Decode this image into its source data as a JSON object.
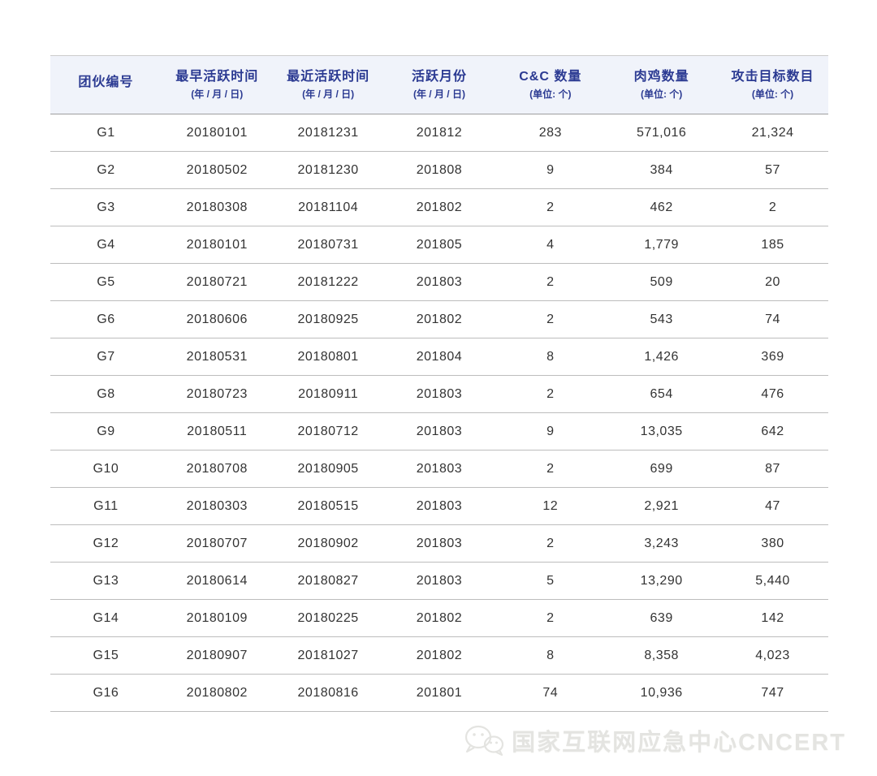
{
  "table": {
    "columns": [
      {
        "label": "团伙编号",
        "sub": ""
      },
      {
        "label": "最早活跃时间",
        "sub": "(年 / 月 / 日)"
      },
      {
        "label": "最近活跃时间",
        "sub": "(年 / 月 / 日)"
      },
      {
        "label": "活跃月份",
        "sub": "(年 / 月 / 日)"
      },
      {
        "label": "C&C 数量",
        "sub": "(单位: 个)"
      },
      {
        "label": "肉鸡数量",
        "sub": "(单位: 个)"
      },
      {
        "label": "攻击目标数目",
        "sub": "(单位: 个)"
      }
    ],
    "rows": [
      [
        "G1",
        "20180101",
        "20181231",
        "201812",
        "283",
        "571,016",
        "21,324"
      ],
      [
        "G2",
        "20180502",
        "20181230",
        "201808",
        "9",
        "384",
        "57"
      ],
      [
        "G3",
        "20180308",
        "20181104",
        "201802",
        "2",
        "462",
        "2"
      ],
      [
        "G4",
        "20180101",
        "20180731",
        "201805",
        "4",
        "1,779",
        "185"
      ],
      [
        "G5",
        "20180721",
        "20181222",
        "201803",
        "2",
        "509",
        "20"
      ],
      [
        "G6",
        "20180606",
        "20180925",
        "201802",
        "2",
        "543",
        "74"
      ],
      [
        "G7",
        "20180531",
        "20180801",
        "201804",
        "8",
        "1,426",
        "369"
      ],
      [
        "G8",
        "20180723",
        "20180911",
        "201803",
        "2",
        "654",
        "476"
      ],
      [
        "G9",
        "20180511",
        "20180712",
        "201803",
        "9",
        "13,035",
        "642"
      ],
      [
        "G10",
        "20180708",
        "20180905",
        "201803",
        "2",
        "699",
        "87"
      ],
      [
        "G11",
        "20180303",
        "20180515",
        "201803",
        "12",
        "2,921",
        "47"
      ],
      [
        "G12",
        "20180707",
        "20180902",
        "201803",
        "2",
        "3,243",
        "380"
      ],
      [
        "G13",
        "20180614",
        "20180827",
        "201803",
        "5",
        "13,290",
        "5,440"
      ],
      [
        "G14",
        "20180109",
        "20180225",
        "201802",
        "2",
        "639",
        "142"
      ],
      [
        "G15",
        "20180907",
        "20181027",
        "201802",
        "8",
        "8,358",
        "4,023"
      ],
      [
        "G16",
        "20180802",
        "20180816",
        "201801",
        "74",
        "10,936",
        "747"
      ]
    ]
  },
  "footer": {
    "watermark_text": "国家互联网应急中心CNCERT",
    "watermark_icon": "wechat-icon"
  },
  "colors": {
    "header_text": "#2b3a92",
    "header_bg": "#f0f3fa",
    "row_divider": "#bdbdbd",
    "body_text": "#333333",
    "watermark": "#e4e4e1"
  }
}
